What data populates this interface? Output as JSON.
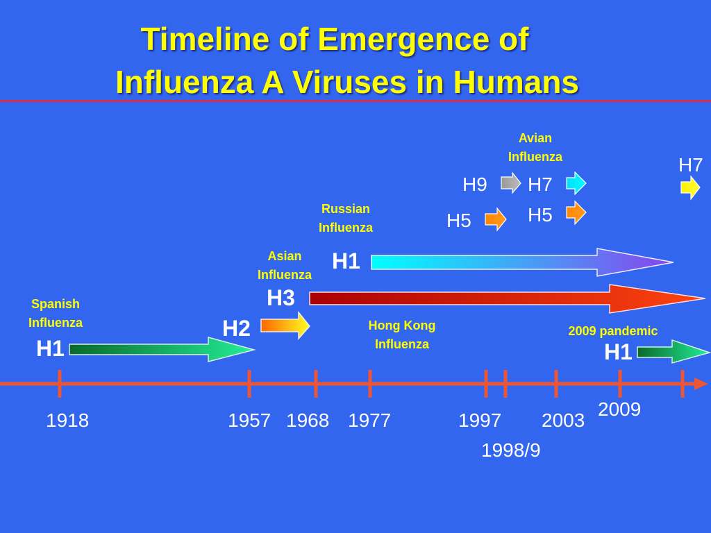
{
  "title": {
    "line1": "Timeline of Emergence of",
    "line2": "Influenza A Viruses in Humans"
  },
  "labels": {
    "spanish": "Spanish\nInfluenza",
    "asian": "Asian\nInfluenza",
    "russian": "Russian\nInfluenza",
    "avian": "Avian\nInfluenza",
    "hongkong": "Hong Kong\nInfluenza",
    "pandemic2009": "2009 pandemic"
  },
  "subtypes": {
    "h1_1918": "H1",
    "h2_1957": "H2",
    "h3_1968": "H3",
    "h1_1977": "H1",
    "h5_1997": "H5",
    "h9_1998": "H9",
    "h7_2003": "H7",
    "h5_2003": "H5",
    "h7_edge": "H7",
    "h1_2009": "H1"
  },
  "years": {
    "y1918": "1918",
    "y1957": "1957",
    "y1968": "1968",
    "y1977": "1977",
    "y1997": "1997",
    "y2003": "2003",
    "y2009": "2009",
    "y1998": "1998/9"
  },
  "colors": {
    "background": "#3366ee",
    "title": "#ffff00",
    "title_rule": "#d62b4a",
    "timeline": "#ee5533",
    "label_text": "#ffff00",
    "subtype_text": "#ffffff"
  }
}
